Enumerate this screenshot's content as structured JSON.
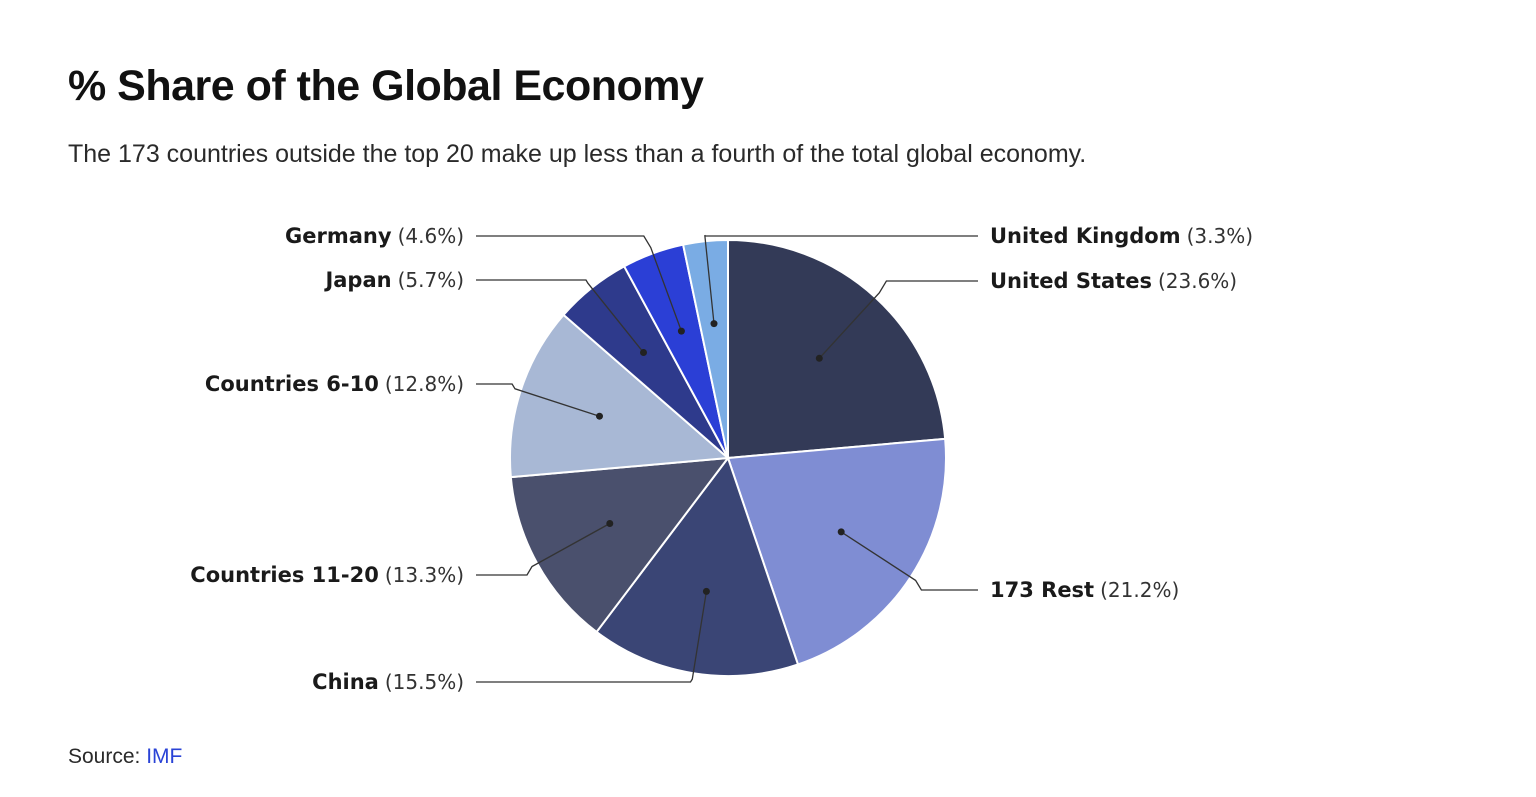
{
  "header": {
    "title": "% Share of the Global Economy",
    "subtitle": "The 173 countries outside the top 20 make up less than a fourth of the total global economy."
  },
  "footer": {
    "source_label": "Source:",
    "source_link": "IMF"
  },
  "chart_data": {
    "type": "pie",
    "title": "% Share of the Global Economy",
    "subtitle": "The 173 countries outside the top 20 make up less than a fourth of the total global economy.",
    "start": "12 o'clock",
    "direction": "clockwise",
    "slices": [
      {
        "label": "United States",
        "value": 23.6,
        "display": "(23.6%)",
        "color": "#333a57",
        "label_side": "right"
      },
      {
        "label": "173 Rest",
        "value": 21.2,
        "display": "(21.2%)",
        "color": "#7f8dd3",
        "label_side": "right"
      },
      {
        "label": "China",
        "value": 15.5,
        "display": "(15.5%)",
        "color": "#3a4575",
        "label_side": "left"
      },
      {
        "label": "Countries 11-20",
        "value": 13.3,
        "display": "(13.3%)",
        "color": "#4a506d",
        "label_side": "left"
      },
      {
        "label": "Countries 6-10",
        "value": 12.8,
        "display": "(12.8%)",
        "color": "#a8b8d5",
        "label_side": "left"
      },
      {
        "label": "Japan",
        "value": 5.7,
        "display": "(5.7%)",
        "color": "#2e3a8c",
        "label_side": "left"
      },
      {
        "label": "Germany",
        "value": 4.6,
        "display": "(4.6%)",
        "color": "#2b3fd6",
        "label_side": "left"
      },
      {
        "label": "United Kingdom",
        "value": 3.3,
        "display": "(3.3%)",
        "color": "#7aace4",
        "label_side": "right"
      }
    ],
    "source": "IMF"
  }
}
